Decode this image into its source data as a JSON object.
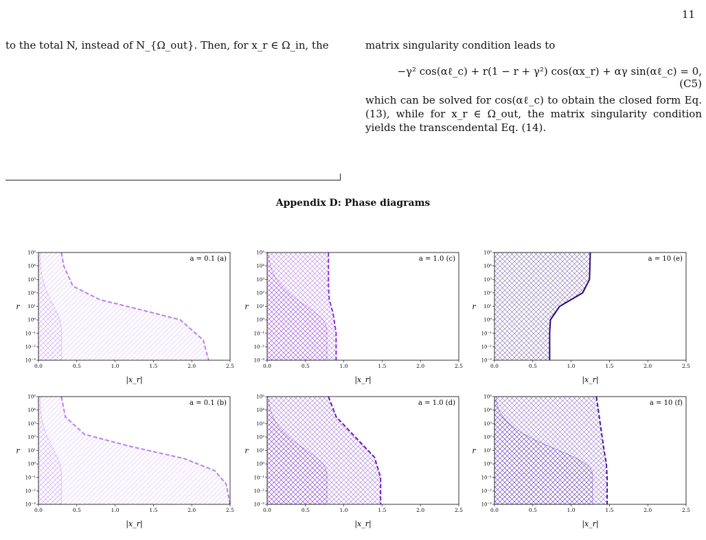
{
  "page": {
    "number": "11",
    "left_column": "to the total N, instead of N_{Ω_out}. Then, for x_r ∈ Ω_in, the",
    "right_intro": "matrix singularity condition leads to",
    "equation": "−γ² cos(αℓ_c) + r(1 − r + γ²) cos(αx_r) + αγ sin(αℓ_c) = 0,",
    "equation_number": "(C5)",
    "right_paragraph": "which can be solved for cos(αℓ_c) to obtain the closed form Eq. (13), while for x_r ∈ Ω_out, the matrix singularity condition yields the transcendental Eq. (14).",
    "appendix_heading": "Appendix D: Phase diagrams"
  },
  "figure": {
    "xlabel": "|x_r|",
    "ylabel": "r",
    "x_ticks": [
      "0.0",
      "0.5",
      "1.0",
      "1.5",
      "2.0",
      "2.5"
    ],
    "y_ticks": [
      "10⁻³",
      "10⁻²",
      "10⁻¹",
      "10⁰",
      "10¹",
      "10²",
      "10³",
      "10⁴",
      "10⁵"
    ],
    "xlim": [
      0,
      2.5
    ],
    "ylim_log10": [
      -3,
      5
    ],
    "panels": [
      {
        "label": "a = 0.1 (a)",
        "color": "#b77ef2",
        "line_style": "dashed",
        "hatch": "single",
        "inner_boundary": {
          "top_x": 0.02,
          "bottom_x": 0.3
        },
        "chart_data": {
          "type": "line",
          "x": [
            0.3,
            0.33,
            0.45,
            0.8,
            1.3,
            1.85,
            2.15,
            2.22
          ],
          "log10_r": [
            5,
            4,
            2.5,
            1.5,
            0.8,
            0.0,
            -1.5,
            -3
          ]
        }
      },
      {
        "label": "a = 1.0 (c)",
        "color": "#8a2bd9",
        "line_style": "dashed",
        "hatch": "cross",
        "inner_boundary": {
          "top_x": 0.02,
          "bottom_x": 0.78
        },
        "chart_data": {
          "type": "line",
          "x": [
            0.8,
            0.8,
            0.81,
            0.86,
            0.9,
            0.9
          ],
          "log10_r": [
            5,
            2.5,
            1.5,
            0.5,
            -1,
            -3
          ]
        }
      },
      {
        "label": "a = 10 (e)",
        "color": "#2b0a7a",
        "line_style": "solid",
        "hatch": "cross",
        "inner_boundary": null,
        "chart_data": {
          "type": "line",
          "x": [
            1.25,
            1.24,
            1.15,
            0.85,
            0.73,
            0.72,
            0.72
          ],
          "log10_r": [
            5,
            3,
            2,
            1,
            0,
            -1,
            -3
          ]
        }
      },
      {
        "label": "a = 0.1 (b)",
        "color": "#b77ef2",
        "line_style": "dashed",
        "hatch": "single",
        "inner_boundary": {
          "top_x": 0.02,
          "bottom_x": 0.3
        },
        "chart_data": {
          "type": "line",
          "x": [
            0.3,
            0.35,
            0.6,
            1.2,
            1.9,
            2.3,
            2.45,
            2.5
          ],
          "log10_r": [
            5,
            3.5,
            2.2,
            1.3,
            0.4,
            -0.5,
            -1.5,
            -3
          ]
        }
      },
      {
        "label": "a = 1.0 (d)",
        "color": "#6b18c4",
        "line_style": "dashed",
        "hatch": "cross",
        "inner_boundary": {
          "top_x": 0.02,
          "bottom_x": 0.78
        },
        "chart_data": {
          "type": "line",
          "x": [
            0.8,
            0.9,
            1.15,
            1.4,
            1.48,
            1.48
          ],
          "log10_r": [
            5,
            3.5,
            2,
            0.5,
            -1,
            -3
          ]
        }
      },
      {
        "label": "a = 10 (f)",
        "color": "#4a12a8",
        "line_style": "dashed",
        "hatch": "cross",
        "inner_boundary": {
          "top_x": 0.02,
          "bottom_x": 1.28
        },
        "chart_data": {
          "type": "line",
          "x": [
            1.33,
            1.38,
            1.43,
            1.46,
            1.47,
            1.47
          ],
          "log10_r": [
            5,
            3,
            1,
            0,
            -1,
            -3
          ]
        }
      }
    ]
  }
}
